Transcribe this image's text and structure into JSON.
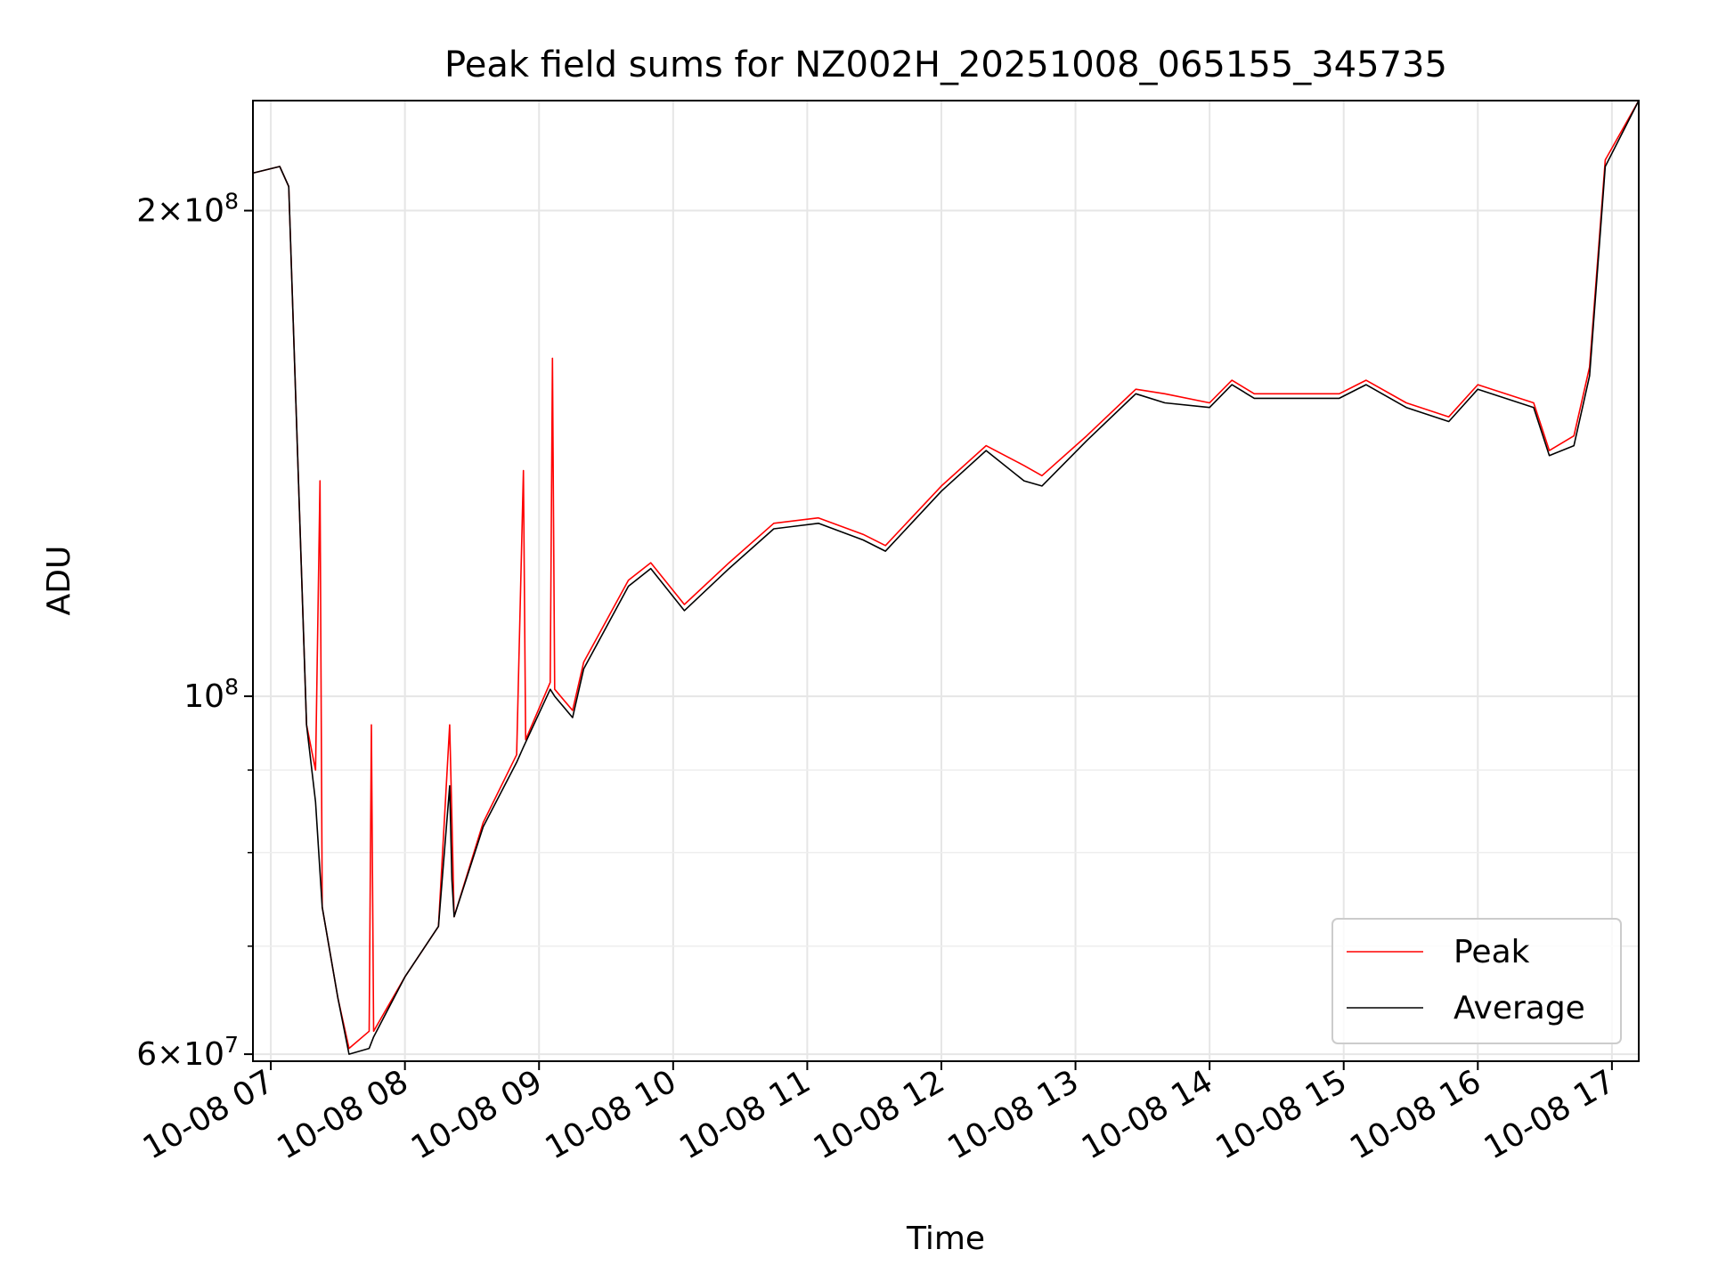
{
  "chart_data": {
    "type": "line",
    "title": "Peak field sums for NZ002H_20251008_065155_345735",
    "xlabel": "Time",
    "ylabel": "ADU",
    "x_unit": "datetime",
    "y_scale": "log",
    "xlim": [
      "2025-10-08 06:52",
      "2025-10-08 17:12"
    ],
    "ylim": [
      59400000,
      234000000
    ],
    "grid": true,
    "legend_position": "lower right",
    "x_ticks": [
      "10-08 07",
      "10-08 08",
      "10-08 09",
      "10-08 10",
      "10-08 11",
      "10-08 12",
      "10-08 13",
      "10-08 14",
      "10-08 15",
      "10-08 16",
      "10-08 17"
    ],
    "y_ticks": [
      "2×10^8",
      "10^8",
      "6×10^7"
    ],
    "series": [
      {
        "name": "Peak",
        "color": "#ff0000",
        "x": [
          "2025-10-08 06:52",
          "2025-10-08 07:04",
          "2025-10-08 07:08",
          "2025-10-08 07:16",
          "2025-10-08 07:20",
          "2025-10-08 07:22",
          "2025-10-08 07:23",
          "2025-10-08 07:30",
          "2025-10-08 07:35",
          "2025-10-08 07:44",
          "2025-10-08 07:45",
          "2025-10-08 07:46",
          "2025-10-08 08:00",
          "2025-10-08 08:15",
          "2025-10-08 08:20",
          "2025-10-08 08:21",
          "2025-10-08 08:22",
          "2025-10-08 08:35",
          "2025-10-08 08:50",
          "2025-10-08 08:53",
          "2025-10-08 08:54",
          "2025-10-08 09:05",
          "2025-10-08 09:06",
          "2025-10-08 09:07",
          "2025-10-08 09:15",
          "2025-10-08 09:20",
          "2025-10-08 09:40",
          "2025-10-08 09:50",
          "2025-10-08 10:05",
          "2025-10-08 10:25",
          "2025-10-08 10:45",
          "2025-10-08 11:05",
          "2025-10-08 11:25",
          "2025-10-08 11:35",
          "2025-10-08 12:00",
          "2025-10-08 12:20",
          "2025-10-08 12:37",
          "2025-10-08 12:45",
          "2025-10-08 13:05",
          "2025-10-08 13:27",
          "2025-10-08 13:40",
          "2025-10-08 14:00",
          "2025-10-08 14:10",
          "2025-10-08 14:20",
          "2025-10-08 14:40",
          "2025-10-08 14:58",
          "2025-10-08 15:10",
          "2025-10-08 15:28",
          "2025-10-08 15:47",
          "2025-10-08 16:00",
          "2025-10-08 16:25",
          "2025-10-08 16:32",
          "2025-10-08 16:43",
          "2025-10-08 16:50",
          "2025-10-08 16:57",
          "2025-10-08 17:12"
        ],
        "y": [
          211000000,
          213000000,
          207000000,
          96000000,
          90000000,
          136000000,
          74000000,
          65000000,
          60500000,
          62000000,
          96000000,
          62000000,
          67000000,
          72000000,
          96000000,
          84000000,
          73000000,
          83500000,
          92000000,
          138000000,
          94000000,
          102000000,
          162000000,
          101000000,
          98000000,
          105000000,
          118000000,
          121000000,
          114000000,
          121000000,
          128000000,
          129000000,
          126000000,
          124000000,
          135000000,
          143000000,
          139000000,
          137000000,
          145000000,
          155000000,
          154000000,
          152000000,
          157000000,
          154000000,
          154000000,
          154000000,
          157000000,
          152000000,
          149000000,
          156000000,
          152000000,
          142000000,
          145000000,
          160000000,
          215000000,
          234000000
        ]
      },
      {
        "name": "Average",
        "color": "#000000",
        "x": [
          "2025-10-08 06:52",
          "2025-10-08 07:04",
          "2025-10-08 07:08",
          "2025-10-08 07:16",
          "2025-10-08 07:20",
          "2025-10-08 07:23",
          "2025-10-08 07:30",
          "2025-10-08 07:35",
          "2025-10-08 07:44",
          "2025-10-08 07:46",
          "2025-10-08 08:00",
          "2025-10-08 08:15",
          "2025-10-08 08:20",
          "2025-10-08 08:21",
          "2025-10-08 08:22",
          "2025-10-08 08:35",
          "2025-10-08 08:50",
          "2025-10-08 08:53",
          "2025-10-08 09:05",
          "2025-10-08 09:07",
          "2025-10-08 09:15",
          "2025-10-08 09:20",
          "2025-10-08 09:40",
          "2025-10-08 09:50",
          "2025-10-08 10:05",
          "2025-10-08 10:25",
          "2025-10-08 10:45",
          "2025-10-08 11:05",
          "2025-10-08 11:25",
          "2025-10-08 11:35",
          "2025-10-08 12:00",
          "2025-10-08 12:20",
          "2025-10-08 12:37",
          "2025-10-08 12:45",
          "2025-10-08 13:05",
          "2025-10-08 13:27",
          "2025-10-08 13:40",
          "2025-10-08 14:00",
          "2025-10-08 14:10",
          "2025-10-08 14:20",
          "2025-10-08 14:40",
          "2025-10-08 14:58",
          "2025-10-08 15:10",
          "2025-10-08 15:28",
          "2025-10-08 15:47",
          "2025-10-08 16:00",
          "2025-10-08 16:25",
          "2025-10-08 16:32",
          "2025-10-08 16:43",
          "2025-10-08 16:50",
          "2025-10-08 16:57",
          "2025-10-08 17:12"
        ],
        "y": [
          211000000,
          213000000,
          207000000,
          96000000,
          86000000,
          74000000,
          65000000,
          60000000,
          60500000,
          61500000,
          67000000,
          72000000,
          88000000,
          77000000,
          73000000,
          83000000,
          91000000,
          93000000,
          101000000,
          100000000,
          97000000,
          104000000,
          117000000,
          120000000,
          113000000,
          120000000,
          127000000,
          128000000,
          125000000,
          123000000,
          134000000,
          142000000,
          136000000,
          135000000,
          144000000,
          154000000,
          152000000,
          151000000,
          156000000,
          153000000,
          153000000,
          153000000,
          156000000,
          151000000,
          148000000,
          155000000,
          151000000,
          141000000,
          143000000,
          158000000,
          213000000,
          234000000
        ]
      }
    ]
  }
}
